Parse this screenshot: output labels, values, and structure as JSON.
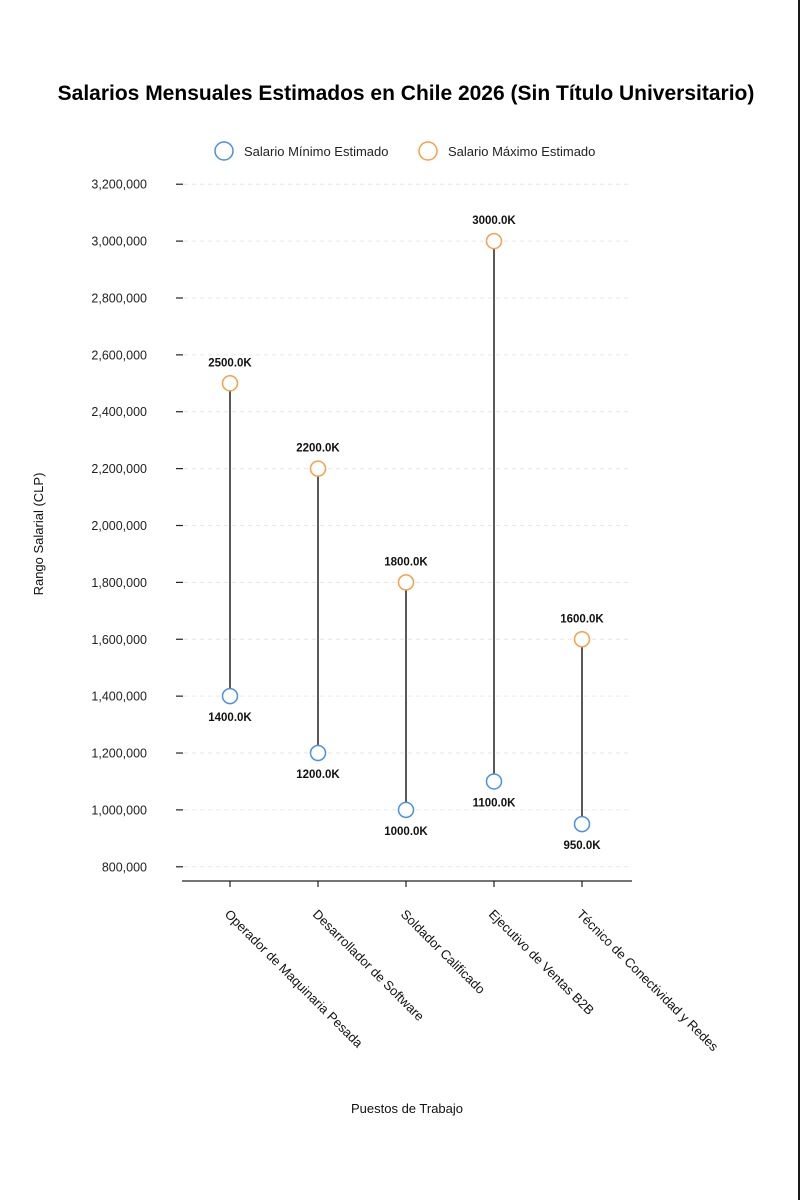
{
  "chart_data": {
    "type": "dumbbell",
    "title": "Salarios Mensuales Estimados en Chile 2026 (Sin Título Universitario)",
    "xlabel": "Puestos de Trabajo",
    "ylabel": "Rango Salarial (CLP)",
    "ylim": [
      750000,
      3250000
    ],
    "yticks": [
      800000,
      1000000,
      1200000,
      1400000,
      1600000,
      1800000,
      2000000,
      2200000,
      2400000,
      2600000,
      2800000,
      3000000,
      3200000
    ],
    "ytick_labels": [
      "800,000",
      "1,000,000",
      "1,200,000",
      "1,400,000",
      "1,600,000",
      "1,800,000",
      "2,000,000",
      "2,200,000",
      "2,400,000",
      "2,600,000",
      "2,800,000",
      "3,000,000",
      "3,200,000"
    ],
    "grid": true,
    "legend_position": "top-center",
    "categories": [
      "Operador de Maquinaria Pesada",
      "Desarrollador de Software",
      "Soldador Calificado",
      "Ejecutivo de Ventas B2B",
      "Técnico de Conectividad y Redes"
    ],
    "series": [
      {
        "name": "Salario Mínimo Estimado",
        "color": "#4a90e2",
        "values": [
          1400000,
          1200000,
          1000000,
          1100000,
          950000
        ],
        "labels": [
          "1400.0K",
          "1200.0K",
          "1000.0K",
          "1100.0K",
          "950.0K"
        ]
      },
      {
        "name": "Salario Máximo Estimado",
        "color": "#f5a04a",
        "values": [
          2500000,
          2200000,
          1800000,
          3000000,
          1600000
        ],
        "labels": [
          "2500.0K",
          "2200.0K",
          "1800.0K",
          "3000.0K",
          "1600.0K"
        ]
      }
    ]
  }
}
